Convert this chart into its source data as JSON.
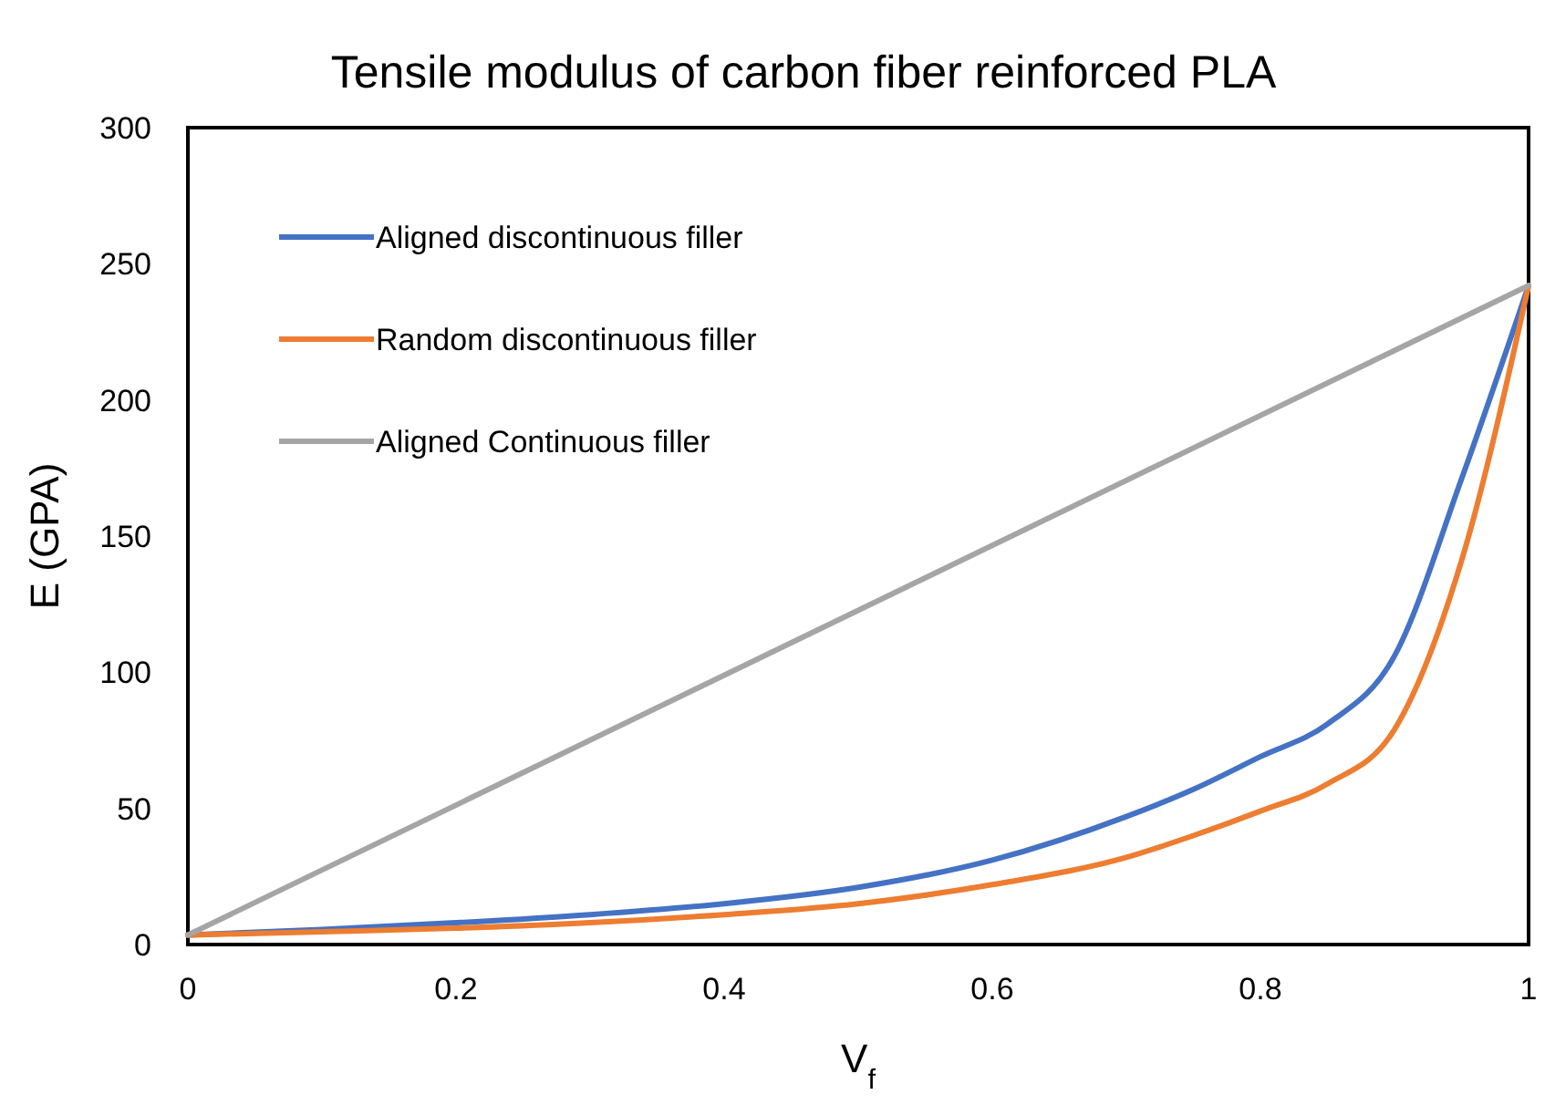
{
  "chart_data": {
    "type": "line",
    "title": "Tensile modulus of carbon fiber reinforced PLA",
    "xlabel": "V$_{f}$",
    "ylabel": "E (GPA)",
    "xlim": [
      0,
      1
    ],
    "xticks": [
      0,
      0.2,
      0.4,
      0.6,
      0.8,
      1
    ],
    "ylim": [
      0,
      300
    ],
    "yticks": [
      0,
      50,
      100,
      150,
      200,
      250,
      300
    ],
    "grid": false,
    "legend": "top left",
    "marker": "none",
    "line_style": "solid",
    "series": [
      {
        "name": "Aligned discontinuous filler",
        "color": "#4472c4",
        "x": [
          0,
          0.1,
          0.2,
          0.3,
          0.4,
          0.5,
          0.6,
          0.7,
          0.75,
          0.8,
          0.85,
          0.9,
          0.95,
          1
        ],
        "values": [
          3.5,
          5.5,
          8,
          11,
          15,
          21,
          31,
          47,
          57,
          69,
          81,
          106,
          171,
          242
        ]
      },
      {
        "name": "Random discontinuous filler",
        "color": "#ed7d31",
        "x": [
          0,
          0.1,
          0.2,
          0.3,
          0.4,
          0.5,
          0.6,
          0.7,
          0.75,
          0.8,
          0.85,
          0.9,
          0.95,
          1
        ],
        "values": [
          3.5,
          4.7,
          6,
          8,
          11,
          15,
          22,
          32,
          40,
          49,
          59,
          79,
          141,
          242
        ]
      },
      {
        "name": "Aligned Continuous filler",
        "color": "#a5a5a5",
        "x": [
          0,
          1
        ],
        "values": [
          3.5,
          242
        ]
      }
    ]
  }
}
